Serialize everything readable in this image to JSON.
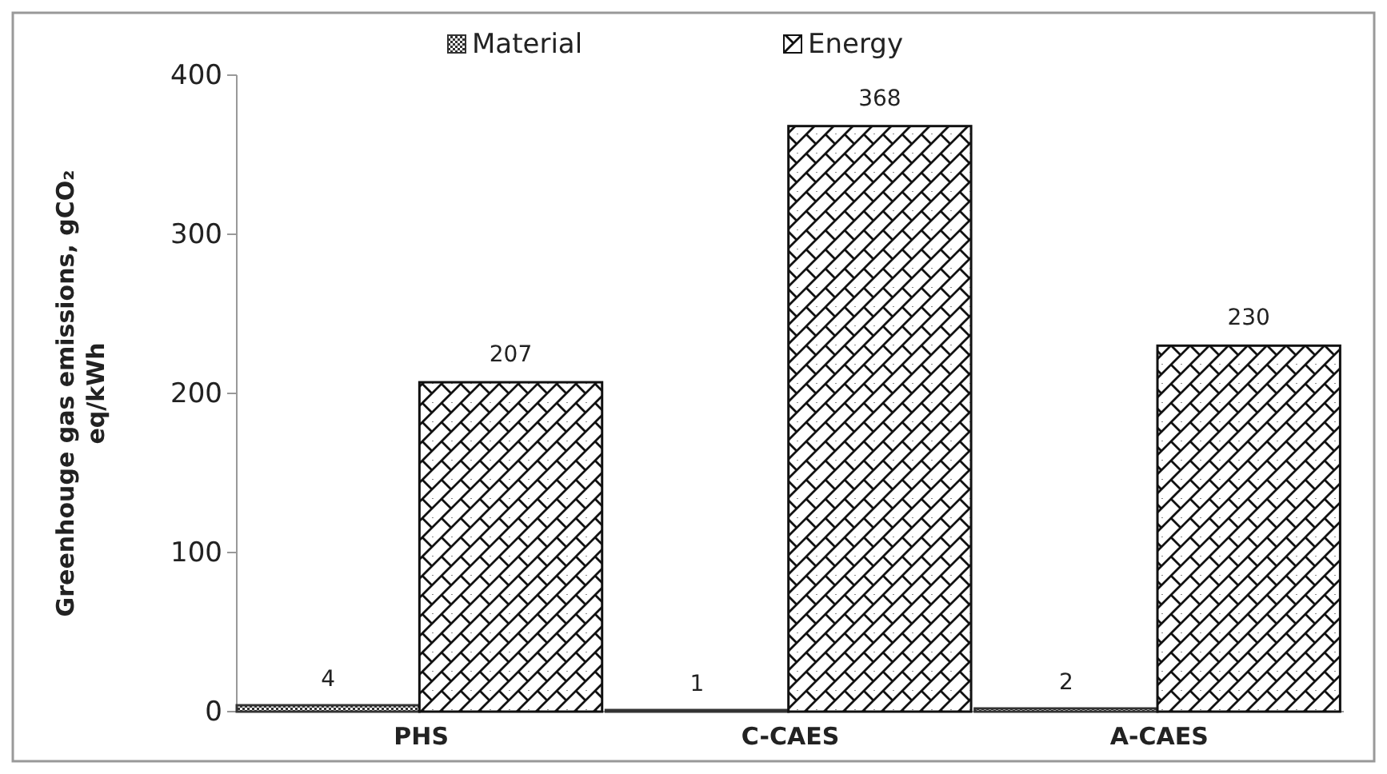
{
  "chart_data": {
    "type": "bar",
    "ylabel": "Greenhouge gas emissions, gCO₂ eq/kWh",
    "categories": [
      "PHS",
      "C-CAES",
      "A-CAES"
    ],
    "series": [
      {
        "name": "Material",
        "color": "#333333",
        "values": [
          4,
          1,
          2
        ]
      },
      {
        "name": "Energy",
        "color": "#111111",
        "values": [
          207,
          368,
          230
        ]
      }
    ],
    "ylim": [
      0,
      400
    ],
    "yticks": [
      0,
      100,
      200,
      300,
      400
    ],
    "data_labels": true,
    "legend": "top",
    "grid": false
  }
}
